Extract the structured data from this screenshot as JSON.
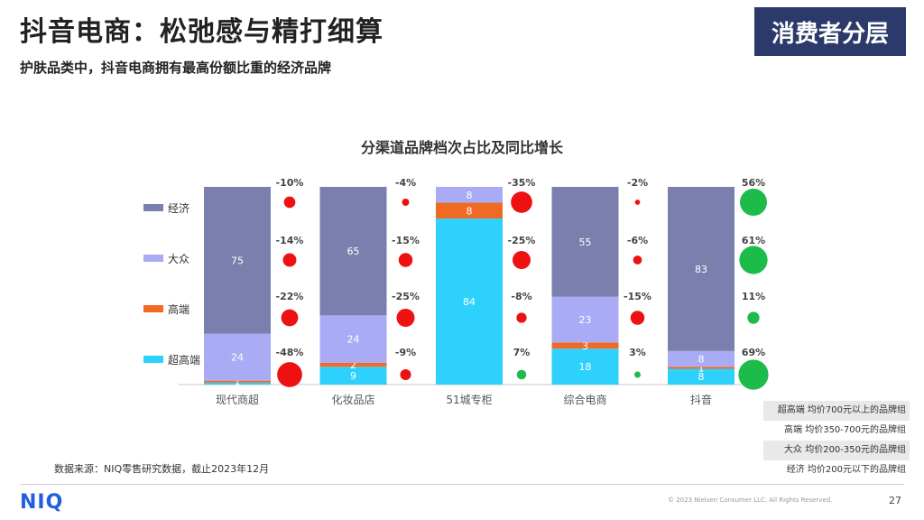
{
  "header": {
    "title": "抖音电商：松弛感与精打细算",
    "subtitle": "护肤品类中，抖音电商拥有最高份额比重的经济品牌",
    "badge": "消费者分层"
  },
  "footer": {
    "source": "数据来源：NIQ零售研究数据，截止2023年12月",
    "logo": "NIQ",
    "copyright": "© 2023 Nielsen Consumer LLC. All Rights Reserved.",
    "page": "27"
  },
  "tier_notes": [
    "超高端 均价700元以上的品牌组",
    "高端 均价350-700元的品牌组",
    "大众 均价200-350元的品牌组",
    "经济 均价200元以下的品牌组"
  ],
  "colors": {
    "economy": "#7a7fae",
    "mass": "#a9abf5",
    "premium": "#f06a23",
    "super_premium": "#2ed1fb",
    "decline": "#ee1111",
    "growth": "#1dbb4a"
  },
  "chart_data": {
    "type": "bar",
    "stacked": true,
    "title": "分渠道品牌档次占比及同比增长",
    "categories": [
      "现代商超",
      "化妆品店",
      "51城专柜",
      "综合电商",
      "抖音"
    ],
    "series": [
      {
        "name": "超高端",
        "values": [
          1,
          9,
          84,
          18,
          8
        ],
        "growth": [
          "-48%",
          "-9%",
          "7%",
          "3%",
          "69%"
        ]
      },
      {
        "name": "高端",
        "values": [
          1,
          2,
          8,
          3,
          1
        ],
        "growth": [
          "-22%",
          "-25%",
          "-8%",
          "-15%",
          "11%"
        ]
      },
      {
        "name": "大众",
        "values": [
          24,
          24,
          8,
          23,
          8
        ],
        "growth": [
          "-14%",
          "-15%",
          "-25%",
          "-6%",
          "61%"
        ]
      },
      {
        "name": "经济",
        "values": [
          75,
          65,
          0,
          55,
          83
        ],
        "growth": [
          "-10%",
          "-4%",
          "-35%",
          "-2%",
          "56%"
        ]
      }
    ],
    "legend_position": "left",
    "ylim": [
      0,
      100
    ],
    "grid": false
  }
}
